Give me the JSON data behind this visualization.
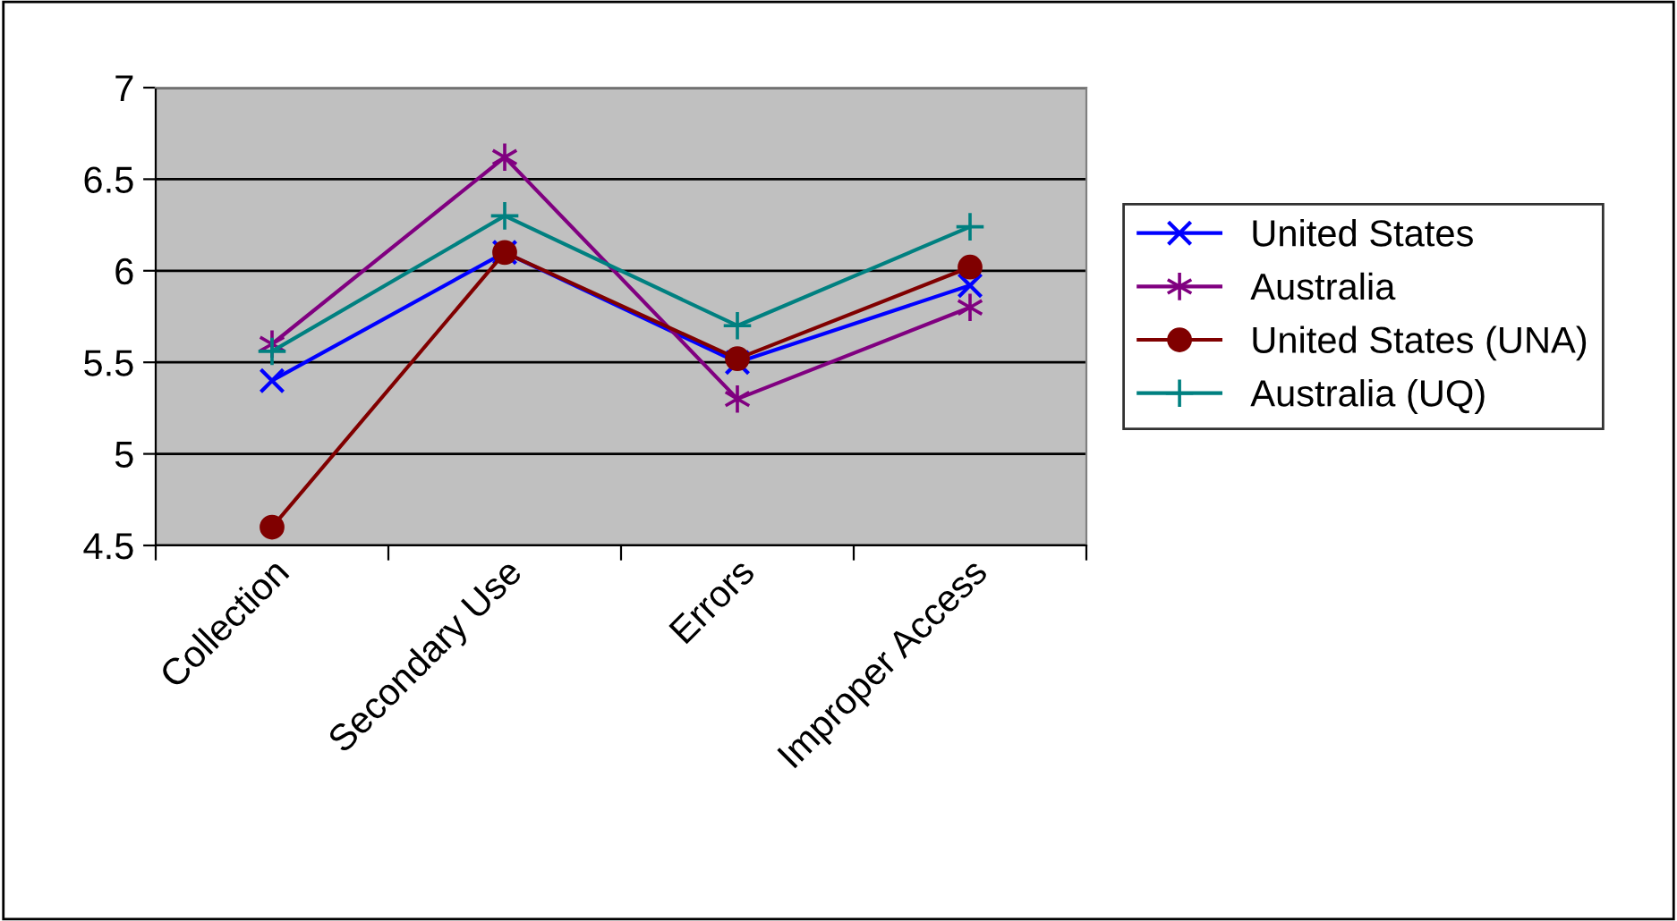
{
  "chart_data": {
    "type": "line",
    "categories": [
      "Collection",
      "Secondary Use",
      "Errors",
      "Improper Access"
    ],
    "series": [
      {
        "name": "United States",
        "color": "#0000ff",
        "marker": "cross",
        "values": [
          5.4,
          6.1,
          5.5,
          5.92
        ]
      },
      {
        "name": "Australia",
        "color": "#800080",
        "marker": "cross",
        "values": [
          5.6,
          6.62,
          5.3,
          5.8
        ]
      },
      {
        "name": "United States (UNA)",
        "color": "#800000",
        "marker": "circle",
        "values": [
          4.6,
          6.1,
          5.52,
          6.02
        ]
      },
      {
        "name": "Australia (UQ)",
        "color": "#008080",
        "marker": "plus",
        "values": [
          5.56,
          6.3,
          5.7,
          6.24
        ]
      }
    ],
    "ylim": [
      4.5,
      7
    ],
    "yticks": [
      4.5,
      5,
      5.5,
      6,
      6.5,
      7
    ],
    "grid": "y",
    "legend": "right",
    "line_style": "solid"
  }
}
